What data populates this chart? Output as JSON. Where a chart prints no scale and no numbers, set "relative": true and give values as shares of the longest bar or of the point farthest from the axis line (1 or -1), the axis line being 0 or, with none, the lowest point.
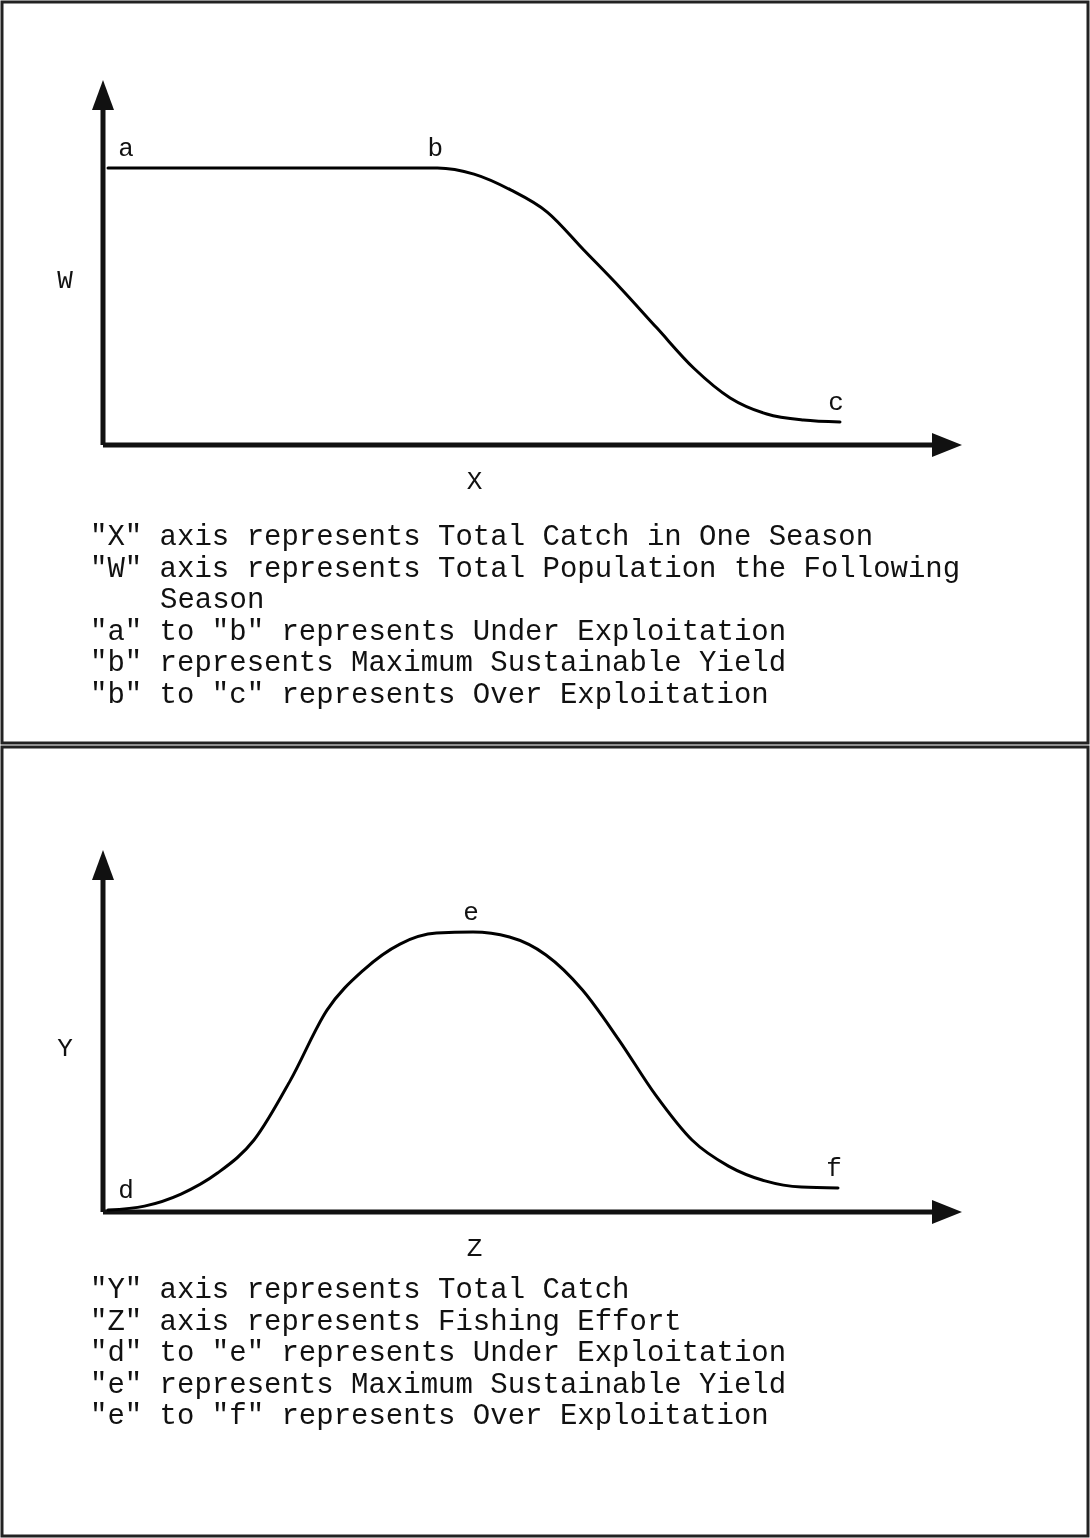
{
  "chart_data": [
    {
      "type": "line",
      "relative": true,
      "xlabel": "X",
      "ylabel": "W",
      "color": "#000000",
      "categories": [
        null,
        null,
        null,
        null,
        null,
        null,
        null,
        null,
        null,
        null,
        null,
        null,
        null,
        null,
        null,
        null,
        null,
        null,
        null,
        null,
        null
      ],
      "values": [
        1,
        1,
        1,
        1,
        1,
        1,
        1,
        1,
        1,
        1,
        0.978,
        0.921,
        0.841,
        0.704,
        0.567,
        0.422,
        0.278,
        0.17,
        0.112,
        0.09,
        0.083
      ],
      "annotations": [
        {
          "text": "a",
          "y": 1
        },
        {
          "text": "b",
          "y": 1
        },
        {
          "text": "c",
          "y": 0.083
        },
        "\"X\" axis represents Total Catch in One Season",
        "\"W\" axis represents Total Population the Following Season",
        "\"a\" to \"b\" represents Under Exploitation",
        "\"b\" represents Maximum Sustainable Yield",
        "\"b\" to \"c\" represents Over Exploitation"
      ]
    },
    {
      "type": "line",
      "relative": true,
      "xlabel": "Z",
      "ylabel": "Y",
      "color": "#000000",
      "categories": [
        null,
        null,
        null,
        null,
        null,
        null,
        null,
        null,
        null,
        null,
        null,
        null,
        null,
        null,
        null,
        null,
        null,
        null,
        null,
        null,
        null
      ],
      "values": [
        0.007,
        0.021,
        0.064,
        0.139,
        0.257,
        0.471,
        0.721,
        0.864,
        0.957,
        0.996,
        1,
        0.982,
        0.918,
        0.793,
        0.614,
        0.418,
        0.257,
        0.164,
        0.111,
        0.089,
        0.086
      ],
      "annotations": [
        {
          "text": "d",
          "y": 0.007
        },
        {
          "text": "e",
          "y": 1
        },
        {
          "text": "f",
          "y": 0.086
        },
        "\"Y\" axis represents Total Catch",
        "\"Z\" axis represents Fishing Effort",
        "\"d\" to \"e\" represents Under Exploitation",
        "\"e\" represents Maximum Sustainable Yield",
        "\"e\" to \"f\" represents Over Exploitation"
      ]
    }
  ]
}
